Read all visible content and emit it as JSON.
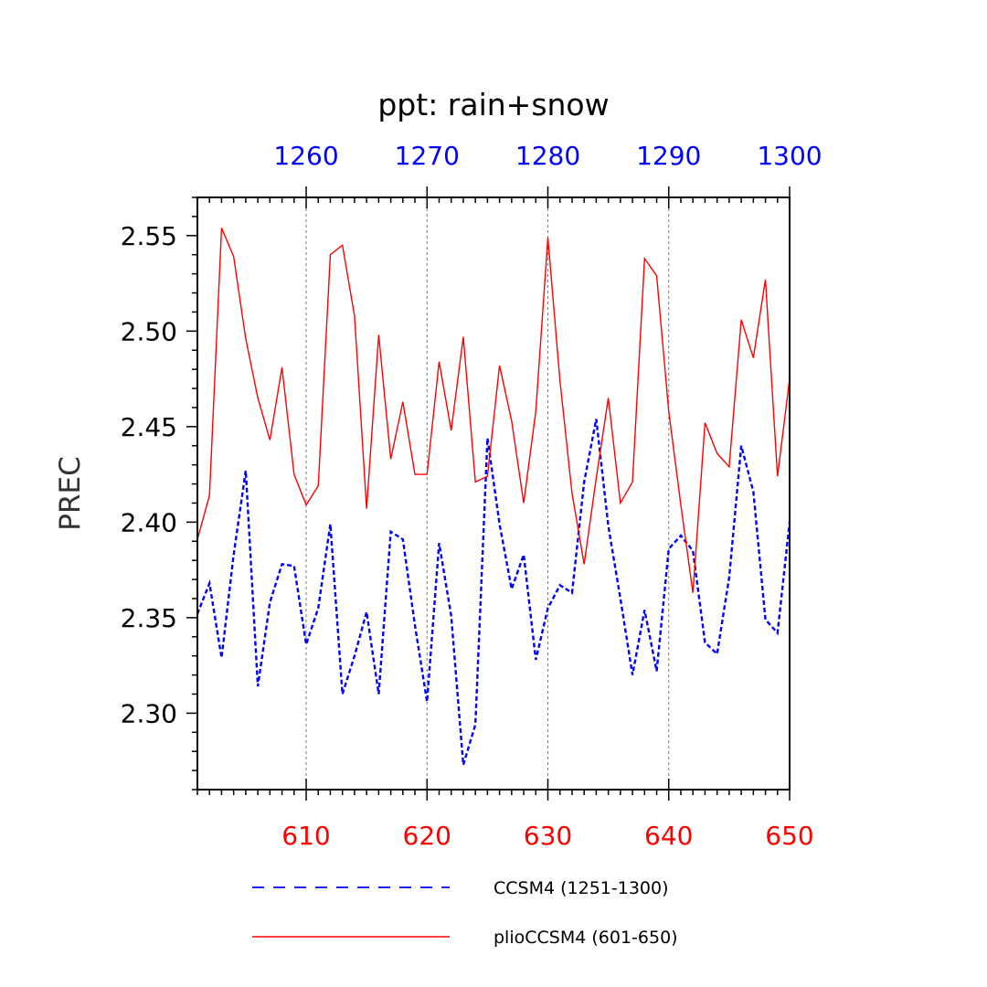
{
  "chart_data": {
    "type": "line",
    "title": "ppt: rain+snow",
    "ylabel": "PREC",
    "ylim": [
      2.26,
      2.57
    ],
    "yticks": [
      "2.30",
      "2.35",
      "2.40",
      "2.45",
      "2.50",
      "2.55"
    ],
    "y_major": [
      2.3,
      2.35,
      2.4,
      2.45,
      2.5,
      2.55
    ],
    "y_minor_step": 0.01,
    "x_bottom": {
      "range": [
        601,
        650
      ],
      "ticks": [
        610,
        620,
        630,
        640,
        650
      ],
      "tick_labels": [
        "610",
        "620",
        "630",
        "640",
        "650"
      ],
      "color": "#ff0000"
    },
    "x_top": {
      "range": [
        1251,
        1300
      ],
      "ticks": [
        1260,
        1270,
        1280,
        1290,
        1300
      ],
      "tick_labels": [
        "1260",
        "1270",
        "1280",
        "1290",
        "1300"
      ],
      "color": "#0000ff"
    },
    "gridlines_x": [
      610,
      620,
      630,
      640
    ],
    "series": [
      {
        "name": "CCSM4 (1251-1300)",
        "color": "#0000ff",
        "dash": "dashed",
        "axis": "top",
        "x": [
          1251,
          1252,
          1253,
          1254,
          1255,
          1256,
          1257,
          1258,
          1259,
          1260,
          1261,
          1262,
          1263,
          1264,
          1265,
          1266,
          1267,
          1268,
          1269,
          1270,
          1271,
          1272,
          1273,
          1274,
          1275,
          1276,
          1277,
          1278,
          1279,
          1280,
          1281,
          1282,
          1283,
          1284,
          1285,
          1286,
          1287,
          1288,
          1289,
          1290,
          1291,
          1292,
          1293,
          1294,
          1295,
          1296,
          1297,
          1298,
          1299,
          1300
        ],
        "values": [
          2.352,
          2.368,
          2.329,
          2.383,
          2.427,
          2.314,
          2.358,
          2.378,
          2.377,
          2.336,
          2.355,
          2.399,
          2.31,
          2.33,
          2.353,
          2.31,
          2.395,
          2.391,
          2.346,
          2.306,
          2.389,
          2.351,
          2.273,
          2.294,
          2.444,
          2.399,
          2.365,
          2.383,
          2.328,
          2.355,
          2.367,
          2.363,
          2.421,
          2.454,
          2.398,
          2.36,
          2.32,
          2.354,
          2.322,
          2.386,
          2.393,
          2.385,
          2.337,
          2.331,
          2.371,
          2.44,
          2.416,
          2.349,
          2.342,
          2.4
        ]
      },
      {
        "name": "plioCCSM4 (601-650)",
        "color": "#ff0000",
        "dash": "solid",
        "axis": "bottom",
        "x": [
          601,
          602,
          603,
          604,
          605,
          606,
          607,
          608,
          609,
          610,
          611,
          612,
          613,
          614,
          615,
          616,
          617,
          618,
          619,
          620,
          621,
          622,
          623,
          624,
          625,
          626,
          627,
          628,
          629,
          630,
          631,
          632,
          633,
          634,
          635,
          636,
          637,
          638,
          639,
          640,
          641,
          642,
          643,
          644,
          645,
          646,
          647,
          648,
          649,
          650
        ],
        "values": [
          2.391,
          2.414,
          2.554,
          2.539,
          2.496,
          2.465,
          2.443,
          2.481,
          2.425,
          2.409,
          2.419,
          2.54,
          2.545,
          2.508,
          2.407,
          2.498,
          2.433,
          2.463,
          2.425,
          2.425,
          2.484,
          2.448,
          2.497,
          2.421,
          2.424,
          2.482,
          2.453,
          2.41,
          2.458,
          2.549,
          2.474,
          2.415,
          2.378,
          2.423,
          2.465,
          2.41,
          2.421,
          2.538,
          2.529,
          2.458,
          2.409,
          2.363,
          2.452,
          2.436,
          2.429,
          2.506,
          2.486,
          2.527,
          2.424,
          2.475
        ]
      }
    ],
    "legend": {
      "placement": "bottom",
      "entries": [
        "CCSM4 (1251-1300)",
        "plioCCSM4 (601-650)"
      ]
    }
  }
}
